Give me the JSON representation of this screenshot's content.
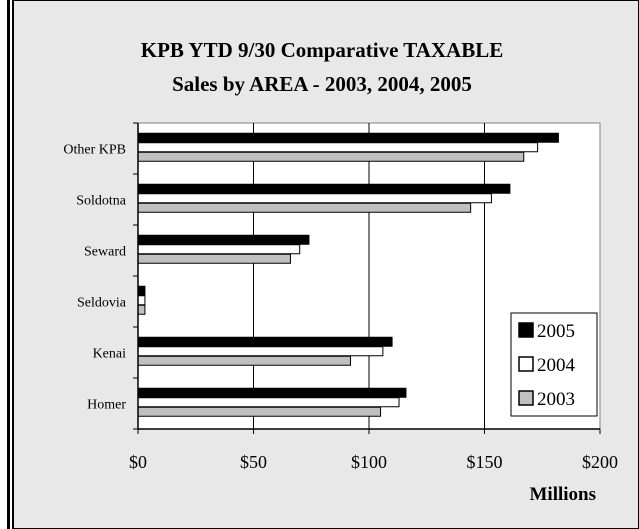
{
  "chart_data": {
    "type": "bar",
    "orientation": "horizontal",
    "title": "KPB YTD 9/30 Comparative TAXABLE",
    "subtitle": "Sales by AREA - 2003, 2004, 2005",
    "xlabel": "Millions",
    "ylabel": "",
    "xlim": [
      0,
      200
    ],
    "x_ticks": [
      "$0",
      "$50",
      "$100",
      "$150",
      "$200"
    ],
    "x_tick_values": [
      0,
      50,
      100,
      150,
      200
    ],
    "categories": [
      "Other KPB",
      "Soldotna",
      "Seward",
      "Seldovia",
      "Kenai",
      "Homer"
    ],
    "series": [
      {
        "name": "2005",
        "color": "#000000",
        "values": [
          182,
          161,
          74,
          3,
          110,
          116
        ]
      },
      {
        "name": "2004",
        "color": "#ffffff",
        "values": [
          173,
          153,
          70,
          3,
          106,
          113
        ]
      },
      {
        "name": "2003",
        "color": "#c0c0c0",
        "values": [
          167,
          144,
          66,
          3,
          92,
          105
        ]
      }
    ],
    "legend_order": [
      "2005",
      "2004",
      "2003"
    ],
    "legend_position": "bottom-right",
    "grid": "vertical",
    "background_color": "#e8e8e8",
    "plot_background_color": "#ffffff"
  }
}
